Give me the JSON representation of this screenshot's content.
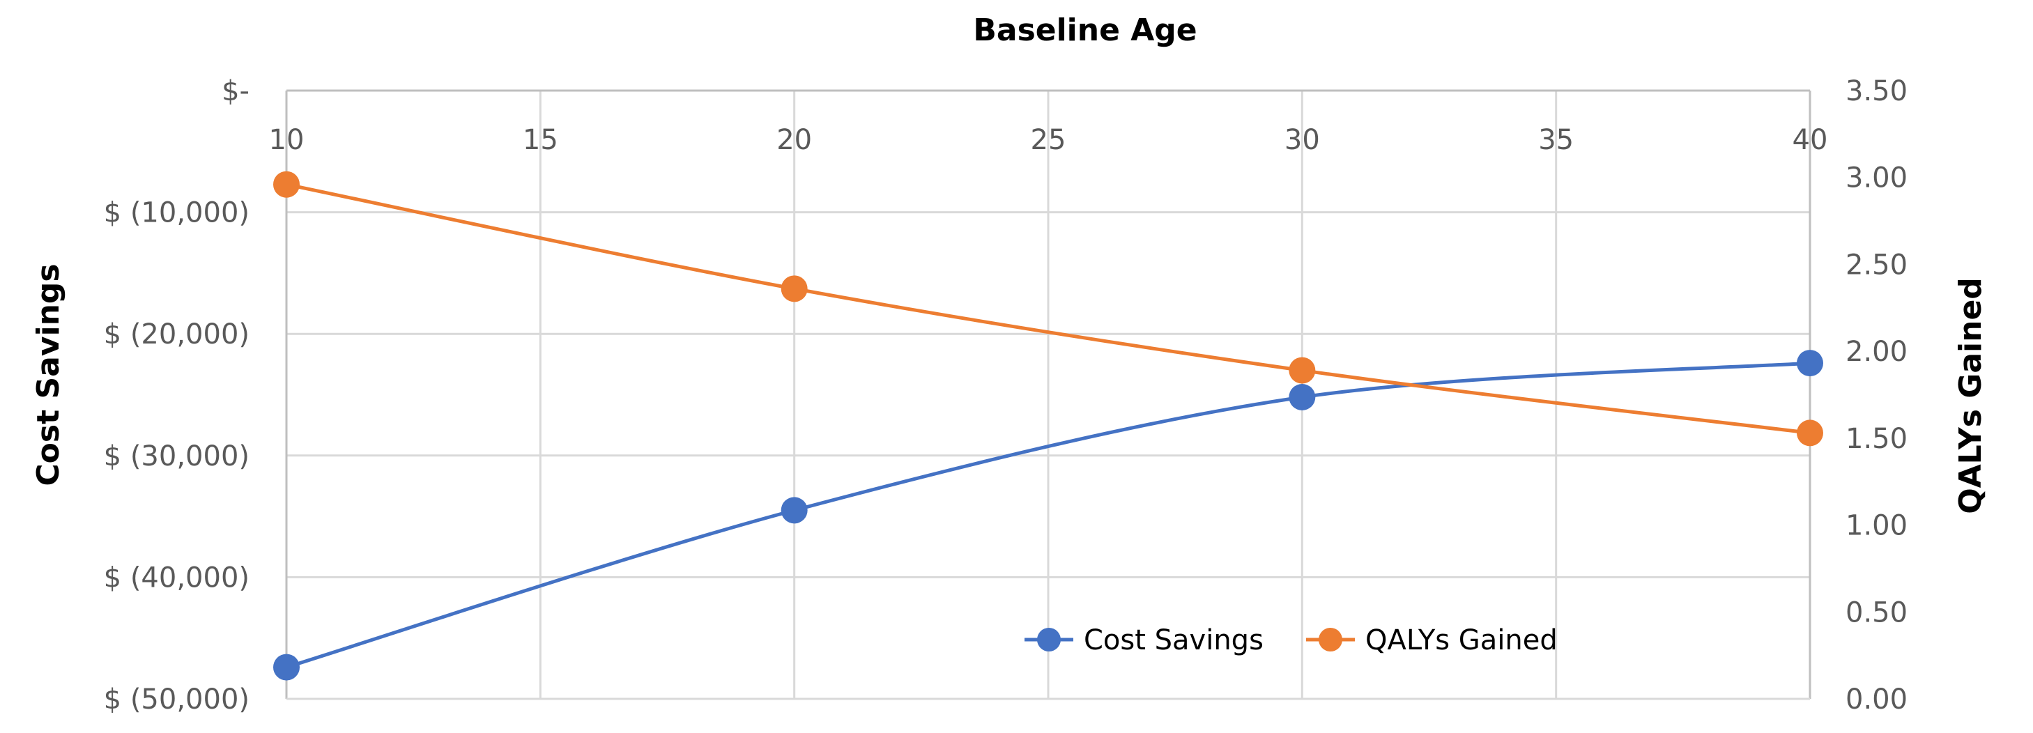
{
  "chart_data": {
    "type": "line",
    "title": "Baseline Age",
    "xlabel": "",
    "ylabel": "Cost Savings",
    "y2label": "QALYs Gained",
    "xlim": [
      10,
      40
    ],
    "x_ticks": [
      "10",
      "15",
      "20",
      "25",
      "30",
      "35",
      "40"
    ],
    "ylim": [
      -50000,
      0
    ],
    "y_ticks": [
      "$-",
      "$ (10,000)",
      "$ (20,000)",
      "$ (30,000)",
      "$ (40,000)",
      "$ (50,000)"
    ],
    "y2lim": [
      0,
      3.5
    ],
    "y2_ticks": [
      "0.00",
      "0.50",
      "1.00",
      "1.50",
      "2.00",
      "2.50",
      "3.00",
      "3.50"
    ],
    "x_axis_position": "top",
    "grid": true,
    "legend_position": "bottom-right",
    "series": [
      {
        "name": "Cost Savings",
        "axis": "left",
        "color": "#4472C4",
        "x": [
          10,
          20,
          30,
          40
        ],
        "values": [
          -47400,
          -34500,
          -25200,
          -22400
        ]
      },
      {
        "name": "QALYs Gained",
        "axis": "right",
        "color": "#ED7D31",
        "x": [
          10,
          20,
          30,
          40
        ],
        "values": [
          2.96,
          2.36,
          1.89,
          1.53
        ]
      }
    ]
  }
}
